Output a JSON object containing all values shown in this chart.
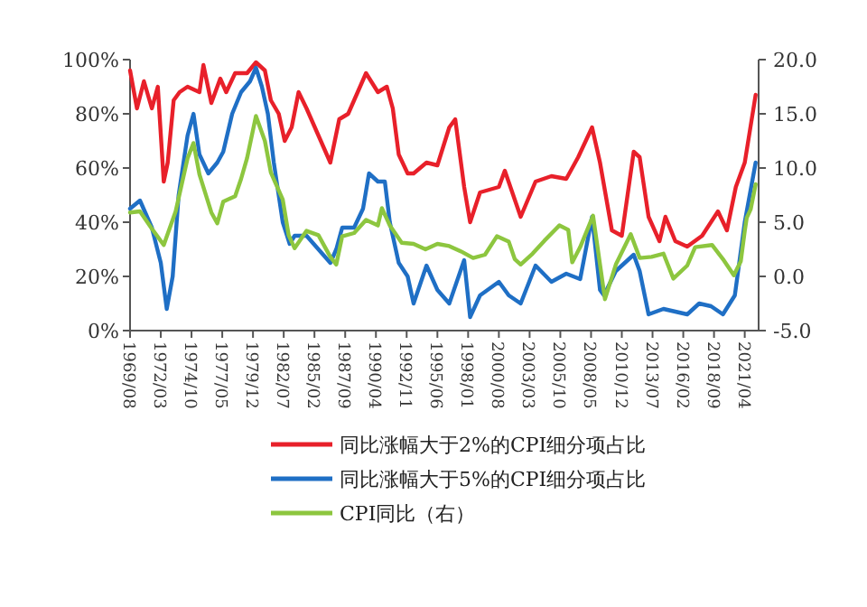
{
  "chart_data": {
    "type": "line",
    "legend": "bottom",
    "xlim": [
      "1969-08",
      "2022-06"
    ],
    "xticks": [
      {
        "value": "1969-08",
        "label": "1969/08"
      },
      {
        "value": "1972-03",
        "label": "1972/03"
      },
      {
        "value": "1974-10",
        "label": "1974/10"
      },
      {
        "value": "1977-05",
        "label": "1977/05"
      },
      {
        "value": "1979-12",
        "label": "1979/12"
      },
      {
        "value": "1982-07",
        "label": "1982/07"
      },
      {
        "value": "1985-02",
        "label": "1985/02"
      },
      {
        "value": "1987-09",
        "label": "1987/09"
      },
      {
        "value": "1990-04",
        "label": "1990/04"
      },
      {
        "value": "1992-11",
        "label": "1992/11"
      },
      {
        "value": "1995-06",
        "label": "1995/06"
      },
      {
        "value": "1998-01",
        "label": "1998/01"
      },
      {
        "value": "2000-08",
        "label": "2000/08"
      },
      {
        "value": "2003-03",
        "label": "2003/03"
      },
      {
        "value": "2005-10",
        "label": "2005/10"
      },
      {
        "value": "2008-05",
        "label": "2008/05"
      },
      {
        "value": "2010-12",
        "label": "2010/12"
      },
      {
        "value": "2013-07",
        "label": "2013/07"
      },
      {
        "value": "2016-02",
        "label": "2016/02"
      },
      {
        "value": "2018-09",
        "label": "2018/09"
      },
      {
        "value": "2021-04",
        "label": "2021/04"
      }
    ],
    "ylim": [
      0,
      100
    ],
    "yticks": [
      {
        "value": 0,
        "label": "0%"
      },
      {
        "value": 20,
        "label": "20%"
      },
      {
        "value": 40,
        "label": "40%"
      },
      {
        "value": 60,
        "label": "60%"
      },
      {
        "value": 80,
        "label": "80%"
      },
      {
        "value": 100,
        "label": "100%"
      }
    ],
    "y2lim": [
      -5,
      20
    ],
    "y2ticks": [
      {
        "value": -5,
        "label": "-5.0"
      },
      {
        "value": 0,
        "label": "0.0"
      },
      {
        "value": 5,
        "label": "5.0"
      },
      {
        "value": 10,
        "label": "10.0"
      },
      {
        "value": 15,
        "label": "15.0"
      },
      {
        "value": 20,
        "label": "20.0"
      }
    ],
    "series": [
      {
        "name": "同比涨幅大于2%的CPI细分项占比",
        "color": "#e8202a",
        "x": [
          "1969-08",
          "1970-03",
          "1970-10",
          "1971-06",
          "1971-12",
          "1972-06",
          "1972-10",
          "1973-04",
          "1973-10",
          "1974-06",
          "1975-06",
          "1975-10",
          "1976-06",
          "1977-03",
          "1977-09",
          "1978-06",
          "1979-06",
          "1980-03",
          "1980-12",
          "1981-06",
          "1982-02",
          "1982-08",
          "1983-03",
          "1983-10",
          "1984-06",
          "1985-06",
          "1986-06",
          "1987-03",
          "1987-12",
          "1988-06",
          "1989-06",
          "1990-06",
          "1991-03",
          "1991-09",
          "1992-03",
          "1992-12",
          "1993-06",
          "1994-07",
          "1995-06",
          "1996-06",
          "1996-12",
          "1997-09",
          "1998-03",
          "1999-01",
          "2000-08",
          "2001-02",
          "2002-06",
          "2003-09",
          "2005-01",
          "2006-04",
          "2007-04",
          "2008-06",
          "2009-02",
          "2010-02",
          "2010-12",
          "2011-12",
          "2012-06",
          "2013-03",
          "2014-02",
          "2014-08",
          "2015-06",
          "2016-06",
          "2017-09",
          "2019-01",
          "2019-10",
          "2020-07",
          "2021-04",
          "2022-03"
        ],
        "values": [
          96,
          82,
          92,
          82,
          90,
          55,
          62,
          85,
          88,
          90,
          88,
          98,
          84,
          93,
          88,
          95,
          95,
          99,
          96,
          85,
          80,
          70,
          75,
          88,
          82,
          72,
          62,
          78,
          80,
          85,
          95,
          88,
          90,
          82,
          65,
          58,
          58,
          62,
          61,
          75,
          78,
          53,
          40,
          51,
          53,
          59,
          42,
          55,
          57,
          56,
          64,
          75,
          62,
          37,
          35,
          66,
          64,
          42,
          33,
          42,
          33,
          31,
          35,
          44,
          37,
          53,
          62,
          87
        ]
      },
      {
        "name": "同比涨幅大于5%的CPI细分项占比",
        "color": "#1f6fc5",
        "x": [
          "1969-08",
          "1970-06",
          "1971-06",
          "1972-03",
          "1972-09",
          "1973-03",
          "1973-09",
          "1974-06",
          "1974-12",
          "1975-06",
          "1976-03",
          "1976-12",
          "1977-06",
          "1978-03",
          "1978-12",
          "1979-09",
          "1980-03",
          "1980-09",
          "1981-03",
          "1981-09",
          "1982-06",
          "1983-01",
          "1983-06",
          "1984-06",
          "1985-06",
          "1986-06",
          "1986-12",
          "1987-06",
          "1988-06",
          "1989-03",
          "1989-09",
          "1990-06",
          "1991-01",
          "1991-06",
          "1992-03",
          "1992-12",
          "1993-06",
          "1994-07",
          "1995-06",
          "1996-06",
          "1997-09",
          "1998-03",
          "1999-01",
          "2000-08",
          "2001-06",
          "2002-06",
          "2003-09",
          "2005-01",
          "2006-04",
          "2007-06",
          "2008-06",
          "2009-02",
          "2009-06",
          "2010-06",
          "2011-12",
          "2012-06",
          "2013-03",
          "2014-06",
          "2015-06",
          "2016-06",
          "2017-06",
          "2018-06",
          "2019-06",
          "2020-06",
          "2021-04",
          "2022-03"
        ],
        "values": [
          45,
          48,
          38,
          25,
          8,
          20,
          50,
          72,
          80,
          65,
          58,
          62,
          66,
          80,
          88,
          92,
          97,
          90,
          80,
          62,
          40,
          32,
          35,
          35,
          30,
          25,
          30,
          38,
          38,
          45,
          58,
          55,
          55,
          40,
          25,
          20,
          10,
          24,
          15,
          10,
          26,
          5,
          13,
          18,
          13,
          10,
          24,
          18,
          21,
          19,
          42,
          15,
          13,
          22,
          28,
          22,
          6,
          8,
          7,
          6,
          10,
          9,
          6,
          13,
          40,
          62
        ]
      },
      {
        "name": "CPI同比（右）",
        "color": "#8dc63f",
        "axis": "y2",
        "x": [
          "1969-08",
          "1970-06",
          "1971-06",
          "1972-06",
          "1973-06",
          "1974-06",
          "1974-12",
          "1975-06",
          "1976-06",
          "1976-12",
          "1977-06",
          "1978-06",
          "1978-12",
          "1979-06",
          "1980-03",
          "1980-12",
          "1981-06",
          "1982-06",
          "1982-12",
          "1983-06",
          "1984-06",
          "1985-06",
          "1986-06",
          "1986-12",
          "1987-06",
          "1988-06",
          "1989-06",
          "1990-06",
          "1990-10",
          "1991-06",
          "1992-06",
          "1993-06",
          "1994-06",
          "1995-06",
          "1996-06",
          "1997-06",
          "1998-06",
          "1999-06",
          "2000-06",
          "2001-06",
          "2001-12",
          "2002-06",
          "2003-06",
          "2004-06",
          "2005-09",
          "2006-06",
          "2006-10",
          "2007-06",
          "2008-07",
          "2009-07",
          "2010-06",
          "2011-09",
          "2012-06",
          "2013-06",
          "2014-06",
          "2015-04",
          "2016-06",
          "2017-02",
          "2018-07",
          "2019-06",
          "2020-05",
          "2020-12",
          "2021-04",
          "2021-06",
          "2021-10",
          "2022-03"
        ],
        "values": [
          5.9,
          6.0,
          4.4,
          2.9,
          6.0,
          10.9,
          12.3,
          9.4,
          5.9,
          4.9,
          6.9,
          7.4,
          9.0,
          10.9,
          14.8,
          12.5,
          9.6,
          7.1,
          3.8,
          2.6,
          4.2,
          3.8,
          1.8,
          1.1,
          3.7,
          4.0,
          5.2,
          4.7,
          6.3,
          4.7,
          3.1,
          3.0,
          2.5,
          3.0,
          2.8,
          2.3,
          1.7,
          2.0,
          3.7,
          3.2,
          1.6,
          1.1,
          2.1,
          3.3,
          4.7,
          4.3,
          1.3,
          2.7,
          5.6,
          -2.1,
          1.1,
          3.9,
          1.7,
          1.8,
          2.1,
          -0.2,
          1.0,
          2.7,
          2.9,
          1.6,
          0.1,
          1.4,
          4.2,
          5.4,
          6.2,
          8.5
        ]
      }
    ]
  }
}
